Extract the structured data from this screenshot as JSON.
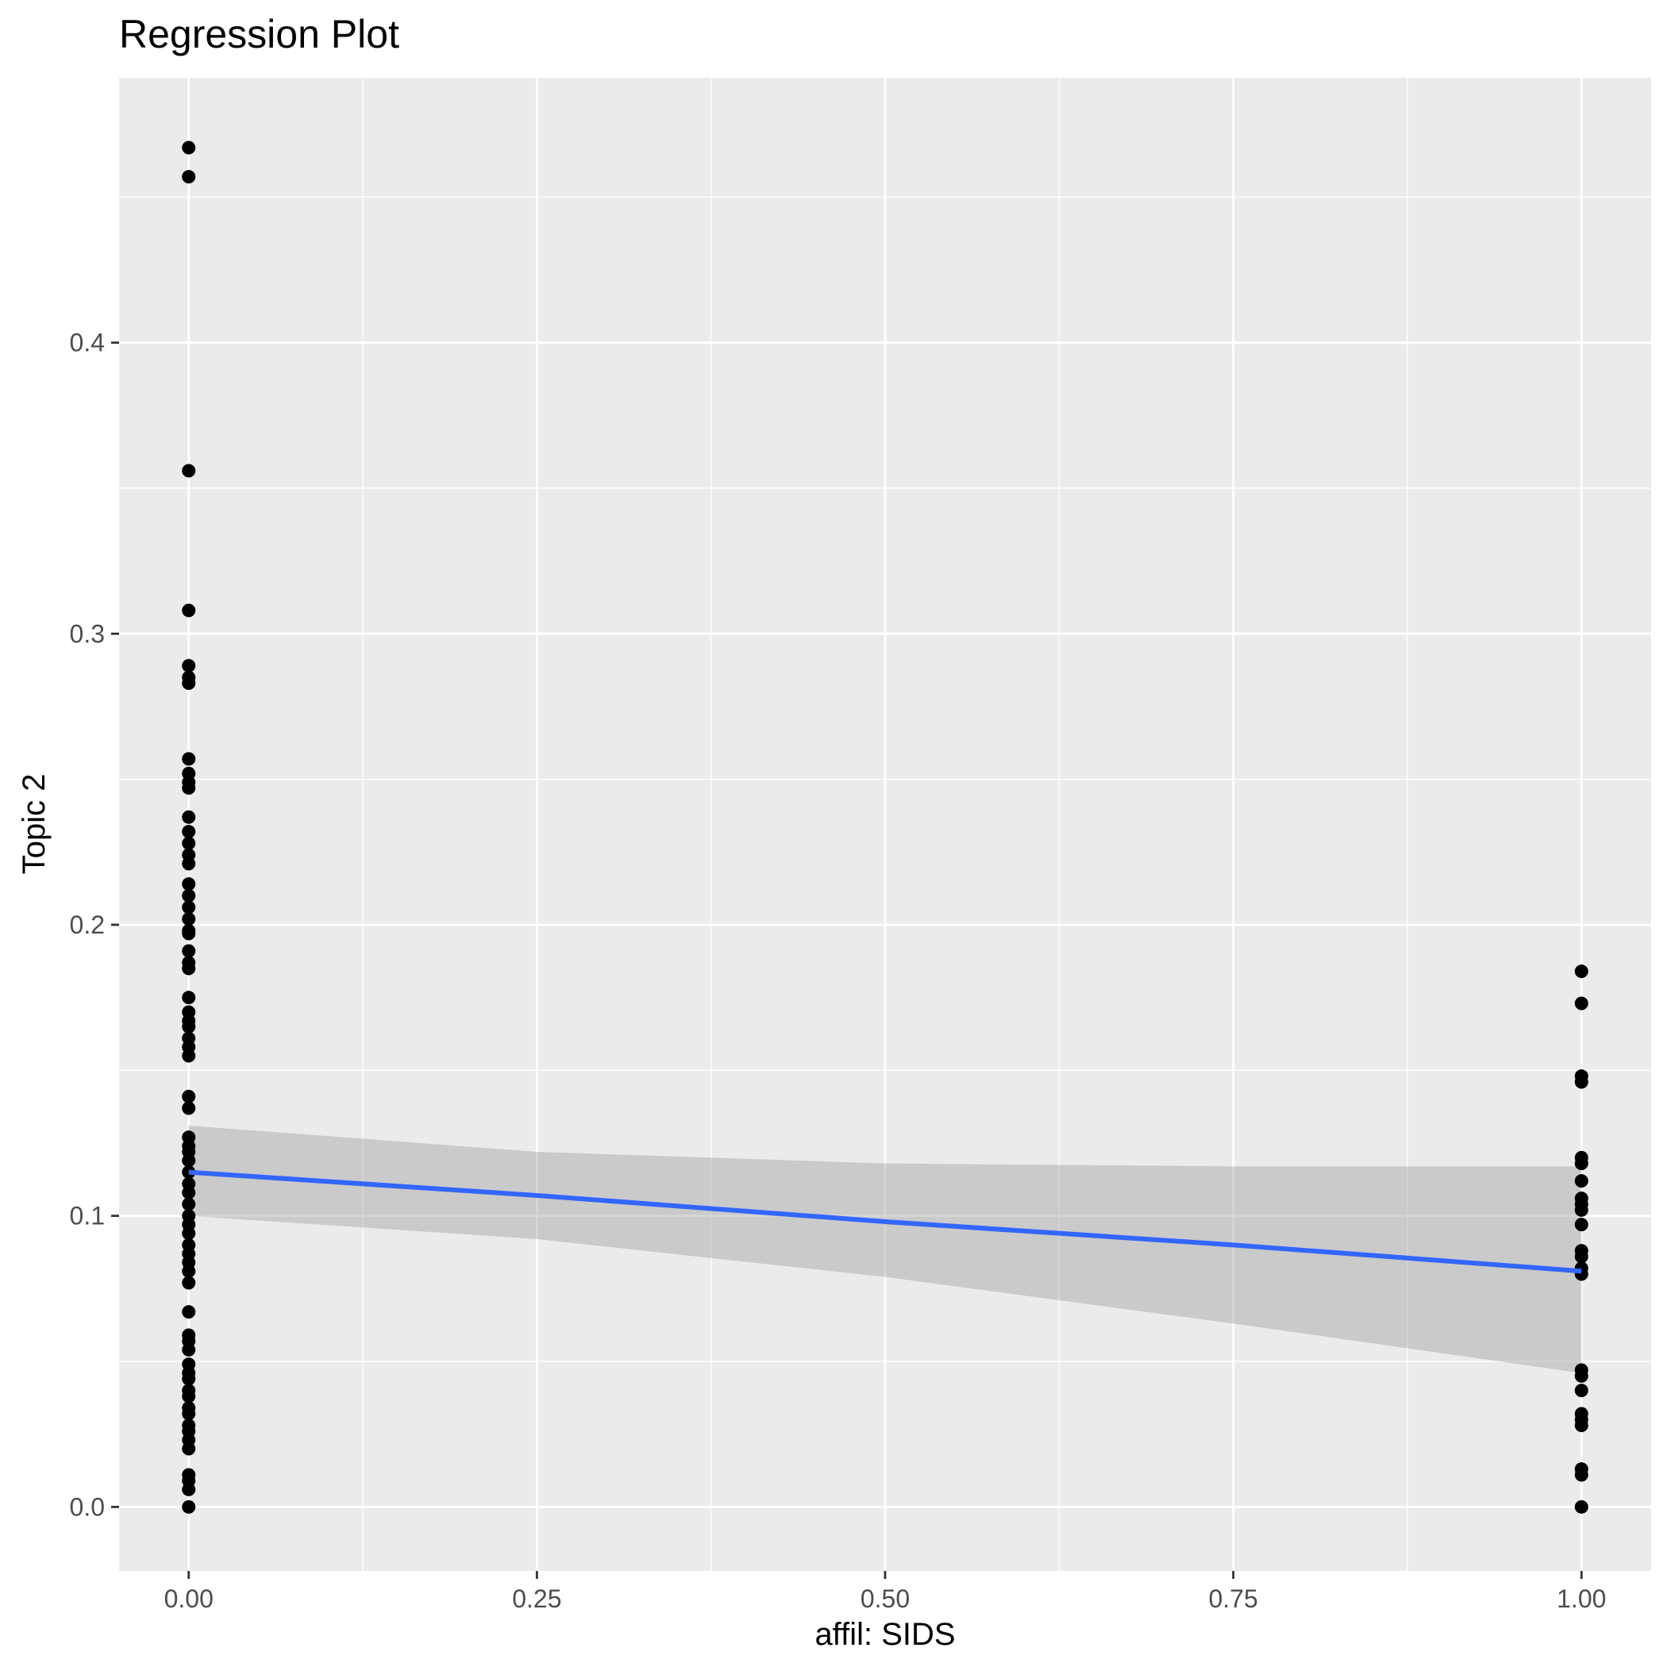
{
  "chart_data": {
    "type": "scatter",
    "title": "Regression Plot",
    "xlabel": "affil: SIDS",
    "ylabel": "Topic 2",
    "xlim": [
      -0.05,
      1.05
    ],
    "ylim": [
      -0.022,
      0.491
    ],
    "x_ticks": [
      {
        "value": 0.0,
        "label": "0.00"
      },
      {
        "value": 0.25,
        "label": "0.25"
      },
      {
        "value": 0.5,
        "label": "0.50"
      },
      {
        "value": 0.75,
        "label": "0.75"
      },
      {
        "value": 1.0,
        "label": "1.00"
      }
    ],
    "y_ticks": [
      {
        "value": 0.0,
        "label": "0.0"
      },
      {
        "value": 0.1,
        "label": "0.1"
      },
      {
        "value": 0.2,
        "label": "0.2"
      },
      {
        "value": 0.3,
        "label": "0.3"
      },
      {
        "value": 0.4,
        "label": "0.4"
      }
    ],
    "grid": true,
    "colors": {
      "panel_background": "#ebebeb",
      "grid_line": "#ffffff",
      "point": "#000000",
      "regression_line": "#3366ff",
      "confidence_band": "#c8c8c8"
    },
    "points": {
      "x0": [
        0.467,
        0.457,
        0.356,
        0.308,
        0.289,
        0.285,
        0.283,
        0.257,
        0.252,
        0.249,
        0.247,
        0.237,
        0.232,
        0.228,
        0.224,
        0.221,
        0.214,
        0.21,
        0.206,
        0.202,
        0.198,
        0.197,
        0.191,
        0.187,
        0.185,
        0.175,
        0.17,
        0.167,
        0.165,
        0.161,
        0.158,
        0.155,
        0.141,
        0.137,
        0.127,
        0.124,
        0.122,
        0.119,
        0.115,
        0.111,
        0.108,
        0.104,
        0.1,
        0.097,
        0.094,
        0.09,
        0.087,
        0.084,
        0.081,
        0.077,
        0.067,
        0.059,
        0.057,
        0.054,
        0.049,
        0.046,
        0.044,
        0.04,
        0.038,
        0.034,
        0.032,
        0.028,
        0.026,
        0.023,
        0.02,
        0.011,
        0.009,
        0.006,
        0.0
      ],
      "x1": [
        0.184,
        0.173,
        0.148,
        0.146,
        0.12,
        0.118,
        0.112,
        0.106,
        0.104,
        0.102,
        0.097,
        0.088,
        0.086,
        0.082,
        0.08,
        0.047,
        0.045,
        0.04,
        0.032,
        0.03,
        0.028,
        0.013,
        0.011,
        0.0
      ]
    },
    "regression": {
      "x": [
        0.0,
        0.25,
        0.5,
        0.75,
        1.0
      ],
      "fit": [
        0.115,
        0.107,
        0.098,
        0.09,
        0.081
      ],
      "lower": [
        0.1,
        0.092,
        0.079,
        0.063,
        0.046
      ],
      "upper": [
        0.131,
        0.122,
        0.118,
        0.117,
        0.117
      ]
    }
  }
}
